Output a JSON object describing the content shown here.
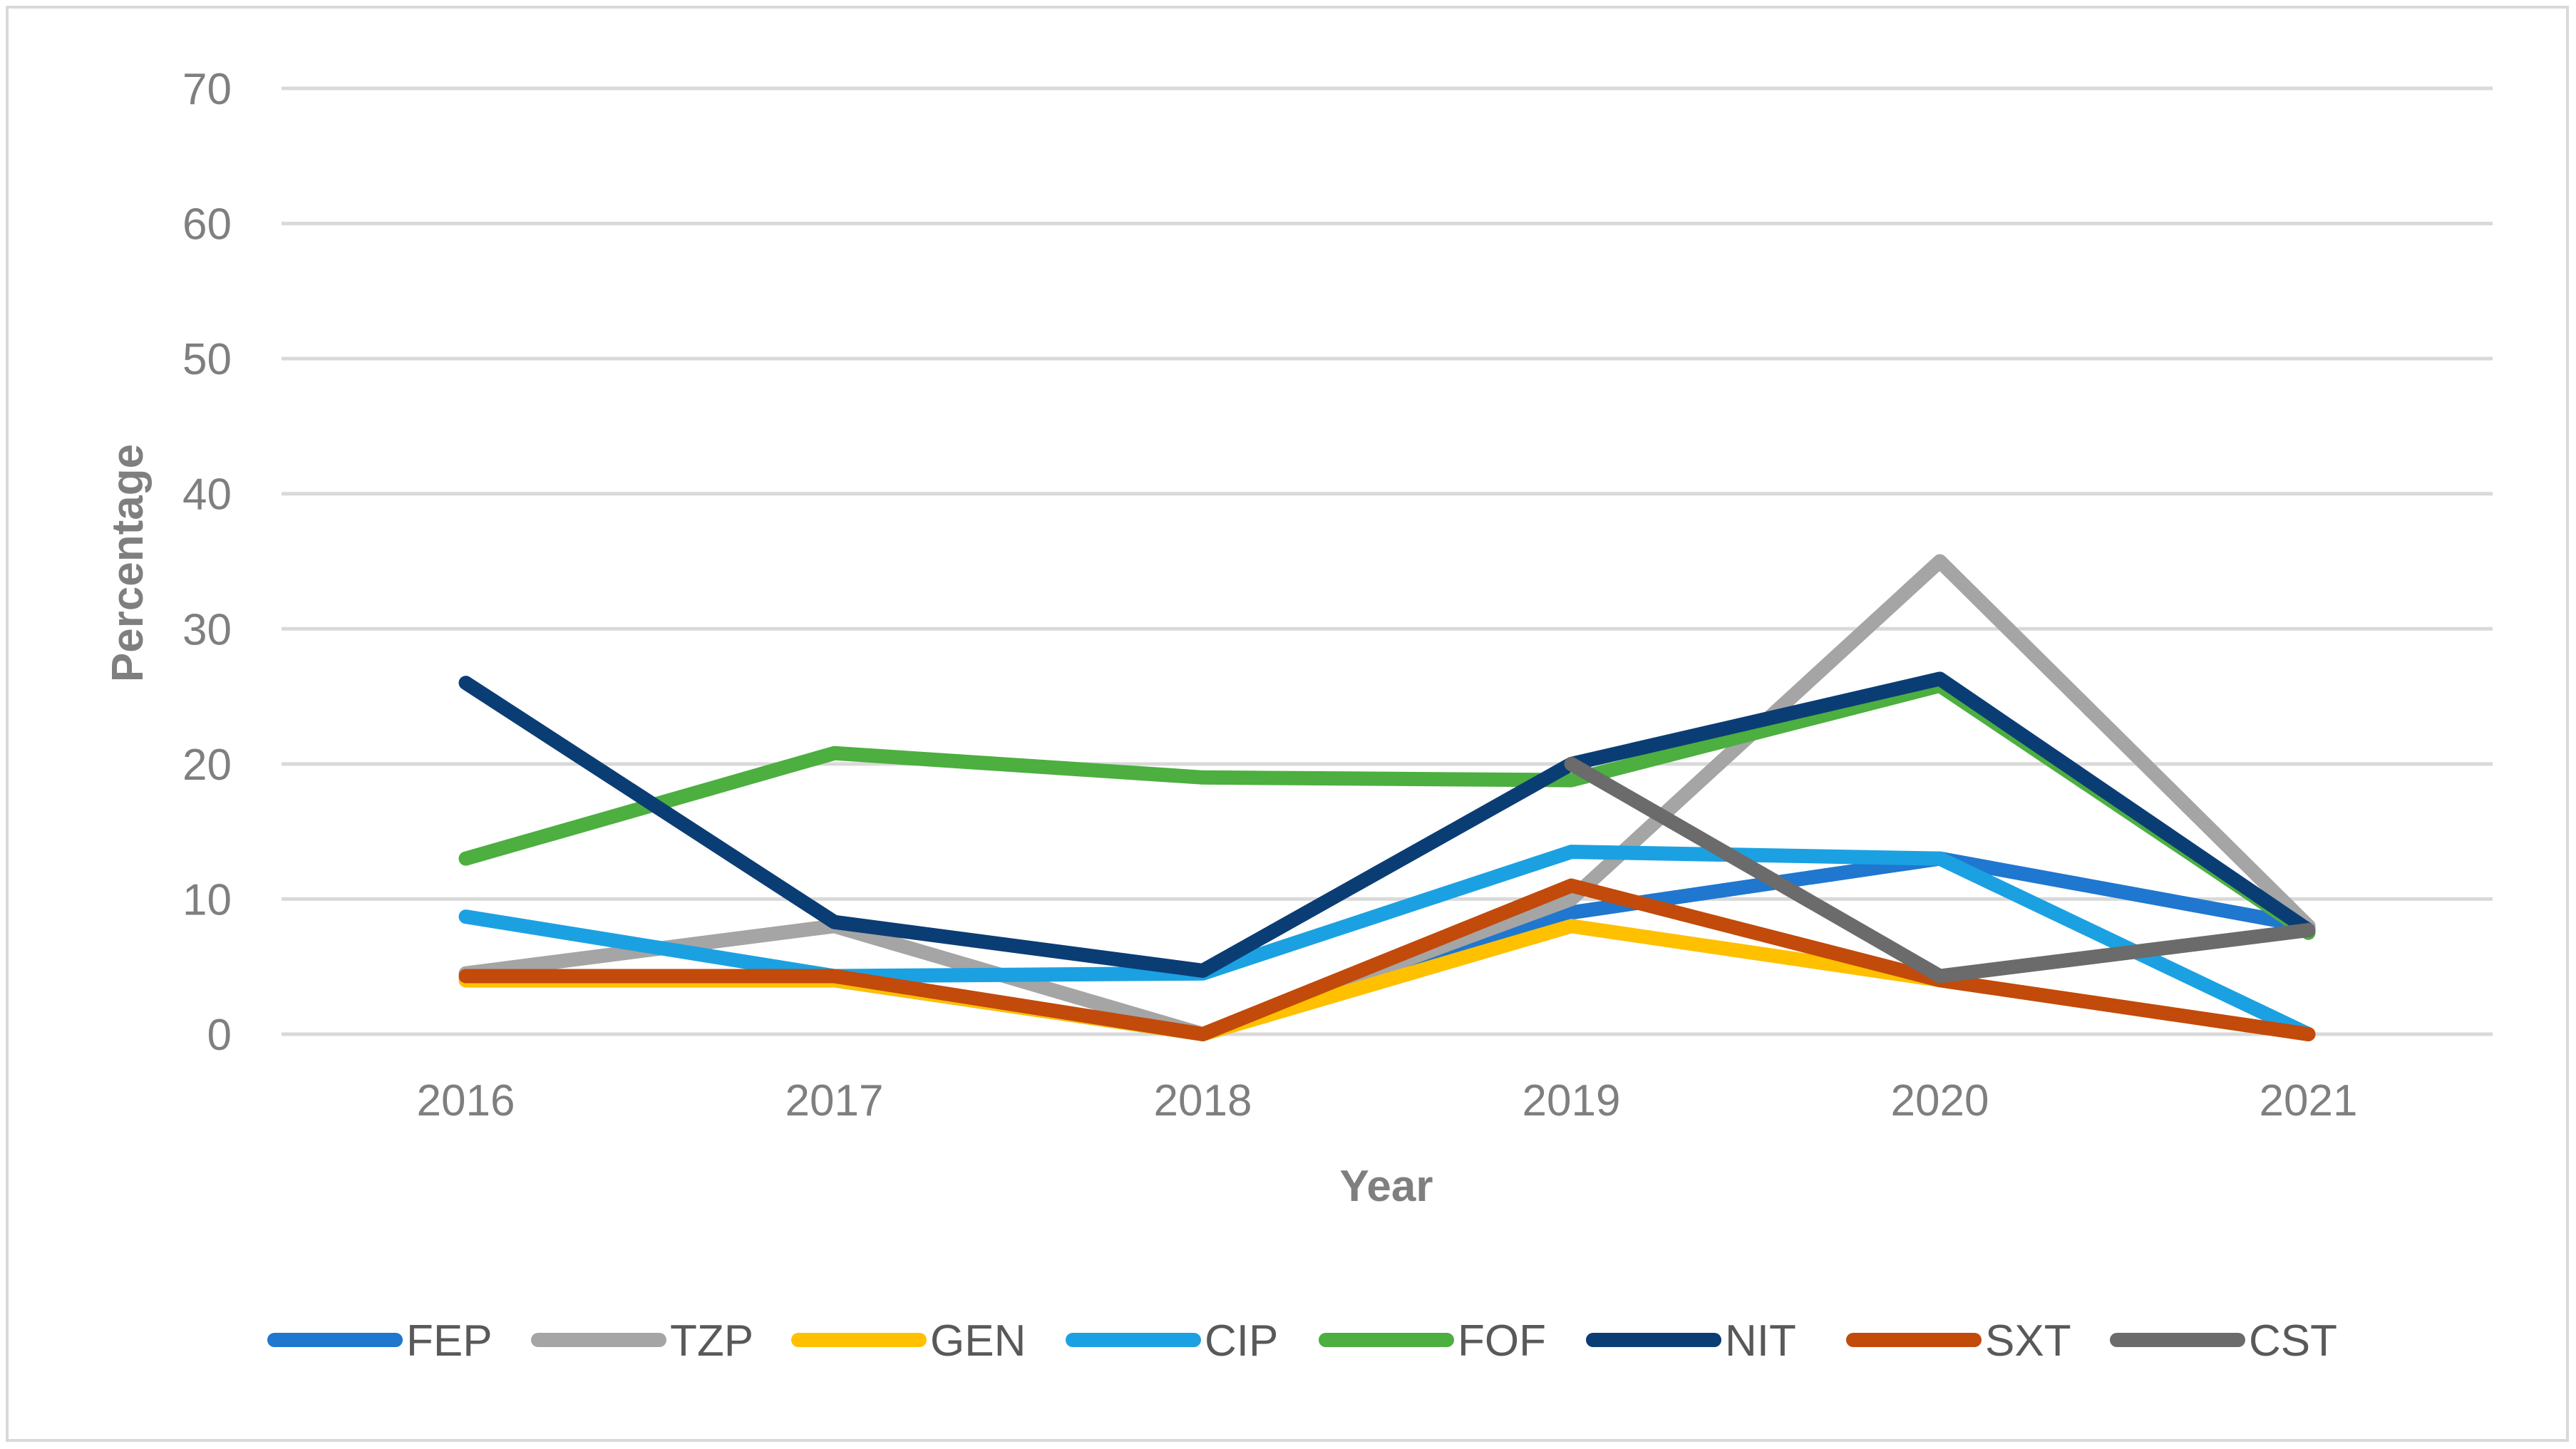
{
  "chart_data": {
    "type": "line",
    "title": "",
    "xlabel": "Year",
    "ylabel": "Percentage",
    "ylim": [
      0,
      70
    ],
    "yticks": [
      0,
      10,
      20,
      30,
      40,
      50,
      60,
      70
    ],
    "grid": true,
    "legend_position": "bottom",
    "categories": [
      "2016",
      "2017",
      "2018",
      "2019",
      "2020",
      "2021"
    ],
    "series": [
      {
        "name": "FEP",
        "color": "#1f77cf",
        "values": [
          4,
          4,
          0,
          9,
          13,
          8
        ]
      },
      {
        "name": "TZP",
        "color": "#a5a5a5",
        "values": [
          4.5,
          8,
          0,
          10,
          35,
          8
        ]
      },
      {
        "name": "GEN",
        "color": "#ffc000",
        "values": [
          4,
          4,
          0,
          8,
          4,
          0
        ]
      },
      {
        "name": "CIP",
        "color": "#1ba1e2",
        "values": [
          8.7,
          4.3,
          4.5,
          13.5,
          13,
          0
        ]
      },
      {
        "name": "FOF",
        "color": "#4caf3f",
        "values": [
          13,
          20.8,
          19,
          18.8,
          25.8,
          7.5
        ]
      },
      {
        "name": "NIT",
        "color": "#0b3d75",
        "values": [
          26,
          8.3,
          4.7,
          20,
          26.3,
          7.7
        ]
      },
      {
        "name": "SXT",
        "color": "#c24a0b",
        "values": [
          4.3,
          4.3,
          0,
          11,
          4,
          0
        ]
      },
      {
        "name": "CST",
        "color": "#6b6b6b",
        "values": [
          null,
          null,
          null,
          20,
          4.3,
          7.7
        ]
      }
    ]
  }
}
